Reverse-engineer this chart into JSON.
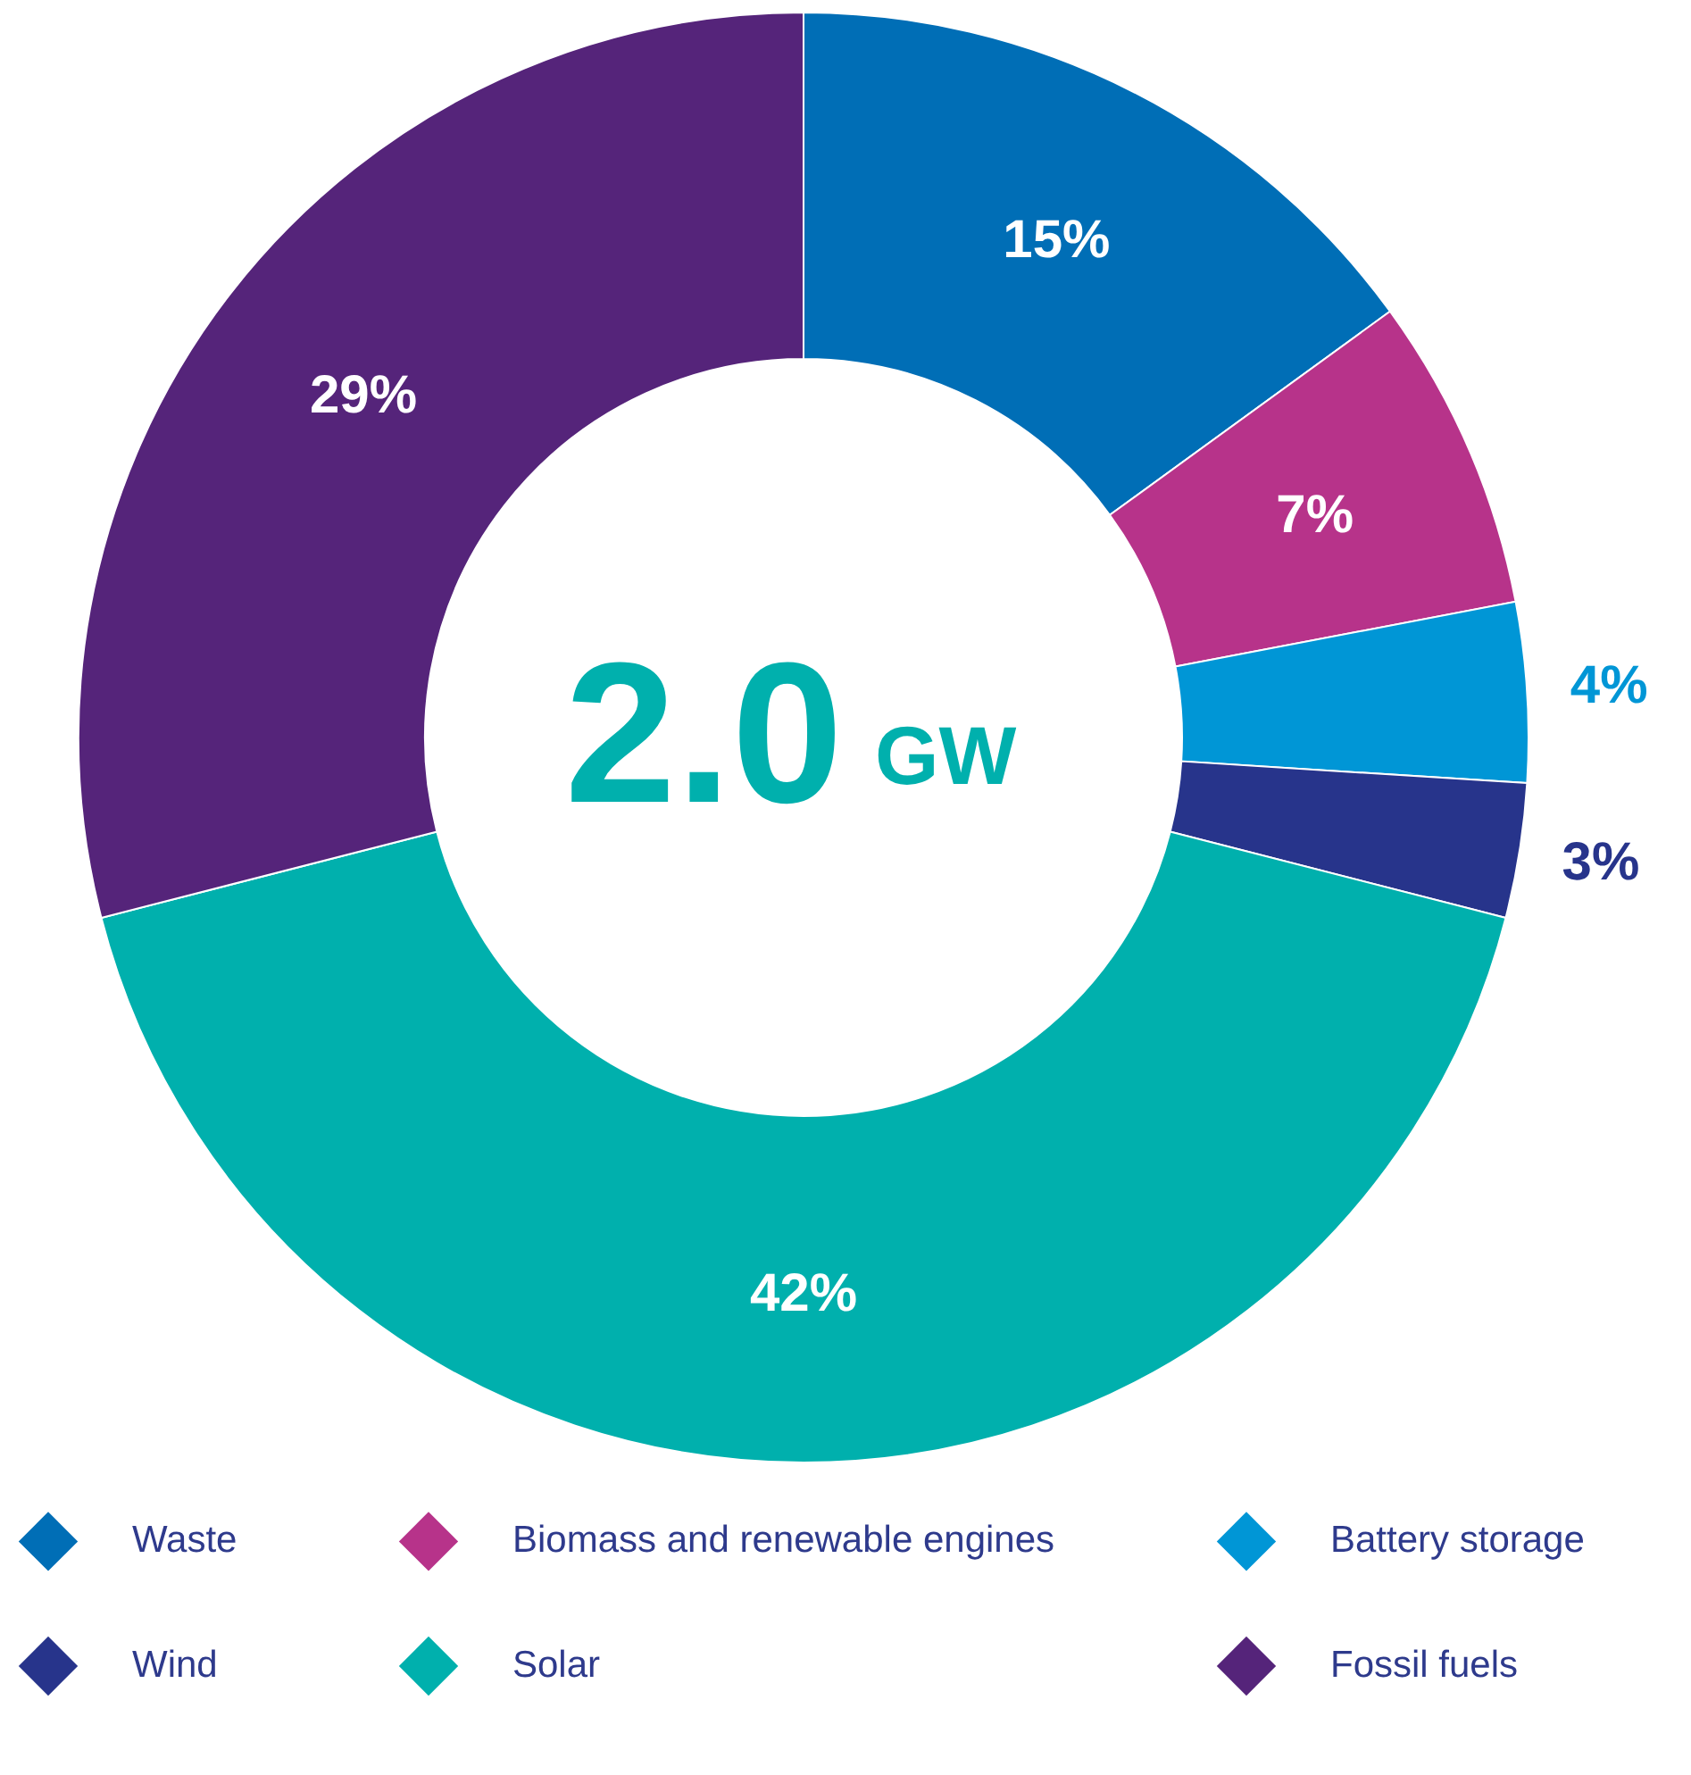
{
  "chart_data": {
    "type": "donut",
    "categories": [
      "Waste",
      "Biomass and renewable engines",
      "Battery storage",
      "Wind",
      "Solar",
      "Fossil fuels"
    ],
    "values": [
      15,
      7,
      4,
      3,
      42,
      29
    ],
    "colors": [
      "#006eb6",
      "#b7338a",
      "#0096d6",
      "#27348b",
      "#00b0ad",
      "#55247a"
    ],
    "value_labels": [
      "15%",
      "7%",
      "4%",
      "3%",
      "42%",
      "29%"
    ],
    "legend": "bottom",
    "annotations": [
      "2.0 GW"
    ]
  }
}
